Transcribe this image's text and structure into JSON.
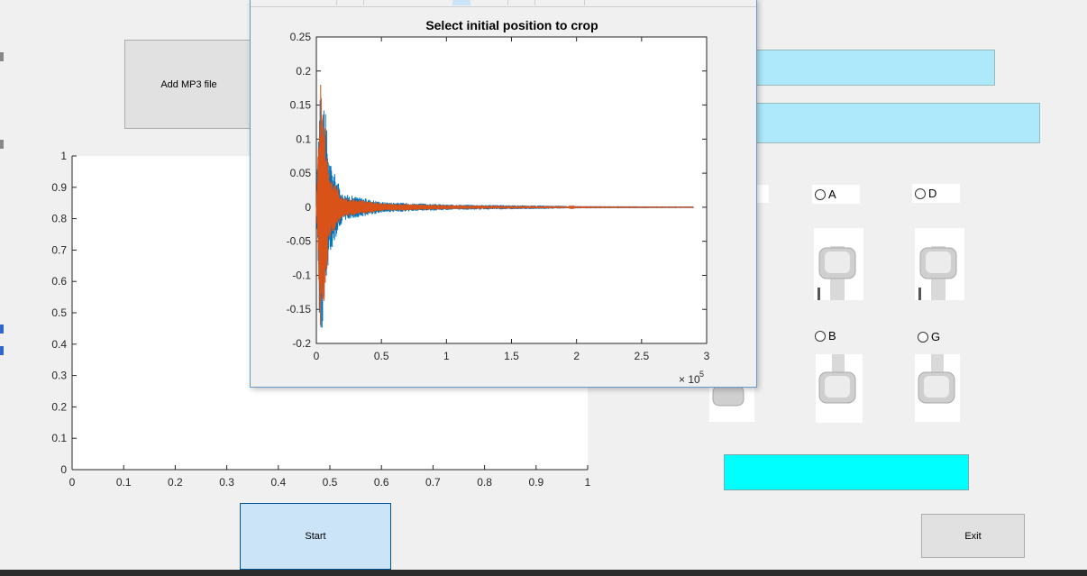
{
  "controls": {
    "add_mp3_label": "Add MP3 file",
    "start_label": "Start",
    "exit_label": "Exit"
  },
  "radios": {
    "a": "A",
    "d": "D",
    "b": "B",
    "g": "G"
  },
  "colors": {
    "light_blue": "#aee8fb",
    "cyan": "#00ffff",
    "series1": "#0072bd",
    "series2": "#d95319"
  },
  "main_axes": {
    "xticks": [
      "0",
      "0.1",
      "0.2",
      "0.3",
      "0.4",
      "0.5",
      "0.6",
      "0.7",
      "0.8",
      "0.9",
      "1"
    ],
    "yticks": [
      "0",
      "0.1",
      "0.2",
      "0.3",
      "0.4",
      "0.5",
      "0.6",
      "0.7",
      "0.8",
      "0.9",
      "1"
    ]
  },
  "chart_data": {
    "type": "line",
    "title": "Select initial position to crop",
    "xlabel": "",
    "ylabel": "",
    "x_multiplier_base": "× 10",
    "x_multiplier_exp": "5",
    "xlim": [
      0,
      3
    ],
    "ylim": [
      -0.2,
      0.25
    ],
    "xticks": [
      "0",
      "0.5",
      "1",
      "1.5",
      "2",
      "2.5",
      "3"
    ],
    "yticks": [
      "0.25",
      "0.2",
      "0.15",
      "0.1",
      "0.05",
      "0",
      "-0.05",
      "-0.1",
      "-0.15",
      "-0.2"
    ],
    "series": [
      {
        "values_description_free": true,
        "color_key": "series1",
        "envelope": [
          [
            0,
            0.0
          ],
          [
            0.03,
            0.21
          ],
          [
            0.06,
            0.16
          ],
          [
            0.1,
            0.07
          ],
          [
            0.2,
            0.02
          ],
          [
            0.5,
            0.008
          ],
          [
            1.0,
            0.004
          ],
          [
            1.5,
            0.003
          ],
          [
            1.9,
            0.002
          ],
          [
            2.0,
            0.0005
          ],
          [
            2.9,
            0.0003
          ]
        ]
      },
      {
        "color_key": "series2",
        "envelope": [
          [
            0,
            0.0
          ],
          [
            0.03,
            0.2
          ],
          [
            0.06,
            0.14
          ],
          [
            0.1,
            0.05
          ],
          [
            0.2,
            0.015
          ],
          [
            0.5,
            0.006
          ],
          [
            1.0,
            0.003
          ],
          [
            1.5,
            0.002
          ],
          [
            1.9,
            0.0015
          ],
          [
            2.0,
            0.0004
          ],
          [
            2.9,
            0.0002
          ]
        ]
      }
    ]
  }
}
